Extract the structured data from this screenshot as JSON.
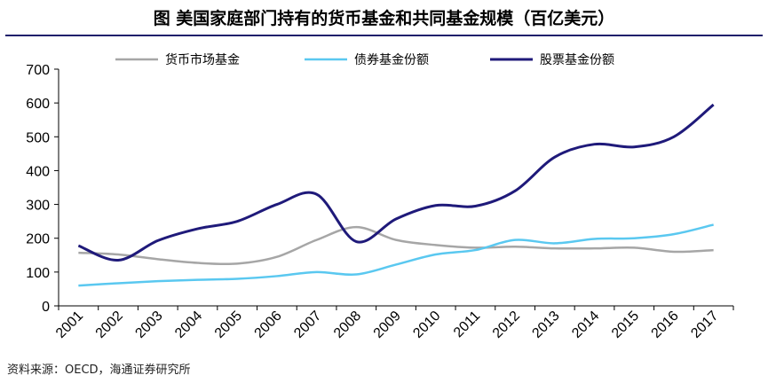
{
  "title": "图  美国家庭部门持有的货币基金和共同基金规模（百亿美元）",
  "source": "资料来源：OECD，海通证券研究所",
  "chart_data": {
    "type": "line",
    "title": "图  美国家庭部门持有的货币基金和共同基金规模（百亿美元）",
    "xlabel": "",
    "ylabel": "",
    "ylim": [
      0,
      700
    ],
    "y_ticks": [
      0,
      100,
      200,
      300,
      400,
      500,
      600,
      700
    ],
    "grid": false,
    "legend_position": "top",
    "categories": [
      "2001",
      "2002",
      "2003",
      "2004",
      "2005",
      "2006",
      "2007",
      "2008",
      "2009",
      "2010",
      "2011",
      "2012",
      "2013",
      "2014",
      "2015",
      "2016",
      "2017"
    ],
    "series": [
      {
        "name": "货币市场基金",
        "color": "#a6a6a6",
        "values": [
          157,
          152,
          138,
          127,
          125,
          145,
          195,
          233,
          195,
          180,
          172,
          175,
          170,
          170,
          172,
          160,
          165
        ]
      },
      {
        "name": "债券基金份额",
        "color": "#5ac8f0",
        "values": [
          60,
          67,
          73,
          77,
          80,
          88,
          100,
          93,
          122,
          152,
          165,
          195,
          185,
          198,
          200,
          212,
          240
        ]
      },
      {
        "name": "股票基金份额",
        "color": "#1f1a7a",
        "values": [
          178,
          135,
          193,
          228,
          250,
          300,
          330,
          190,
          257,
          297,
          295,
          340,
          440,
          478,
          470,
          500,
          595
        ]
      }
    ]
  }
}
